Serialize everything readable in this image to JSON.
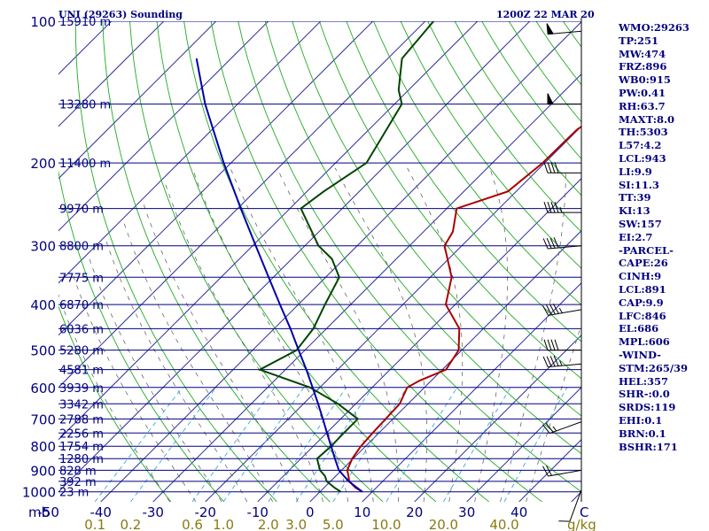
{
  "header": {
    "station": "UNI (29263) Sounding",
    "time": "1200Z 22 MAR 20"
  },
  "units": {
    "pressure": "mb",
    "temperature": "C",
    "mixing_ratio": "g/kg"
  },
  "chart_data": {
    "type": "line",
    "title": "UNI (29263) Sounding",
    "subtitle": "1200Z 22 MAR 20",
    "y_scale": "log",
    "ylim": [
      1050,
      100
    ],
    "xlim": [
      -50,
      50
    ],
    "pressure_ticks": [
      "100",
      "200",
      "300",
      "400",
      "500",
      "600",
      "700",
      "800",
      "900",
      "1000"
    ],
    "pressure_values": [
      100,
      200,
      300,
      400,
      500,
      600,
      700,
      800,
      900,
      1000
    ],
    "temp_ticks": [
      "-50",
      "-40",
      "-30",
      "-20",
      "-10",
      "0",
      "10",
      "20",
      "30",
      "40"
    ],
    "temp_values": [
      -50,
      -40,
      -30,
      -20,
      -10,
      0,
      10,
      20,
      30,
      40
    ],
    "mixing_ticks": [
      "0.1",
      "0.2",
      "0.6",
      "1.0",
      "2.0",
      "3.0",
      "5.0",
      "10.0",
      "20.0",
      "40.0"
    ],
    "mixing_values": [
      0.1,
      0.2,
      0.6,
      1.0,
      2.0,
      3.0,
      5.0,
      10.0,
      20.0,
      40.0
    ],
    "height_levels": [
      {
        "p": 100,
        "label": "15910 m"
      },
      {
        "p": 150,
        "label": "13280 m"
      },
      {
        "p": 200,
        "label": "11400 m"
      },
      {
        "p": 250,
        "label": "9970 m"
      },
      {
        "p": 300,
        "label": "8800 m"
      },
      {
        "p": 350,
        "label": "7775 m"
      },
      {
        "p": 400,
        "label": "6870 m"
      },
      {
        "p": 450,
        "label": "6036 m"
      },
      {
        "p": 500,
        "label": "5280 m"
      },
      {
        "p": 550,
        "label": "4581 m"
      },
      {
        "p": 600,
        "label": "3939 m"
      },
      {
        "p": 650,
        "label": "3342 m"
      },
      {
        "p": 700,
        "label": "2788 m"
      },
      {
        "p": 750,
        "label": "2256 m"
      },
      {
        "p": 800,
        "label": "1754 m"
      },
      {
        "p": 850,
        "label": "1280 m"
      },
      {
        "p": 900,
        "label": "828 m"
      },
      {
        "p": 950,
        "label": "392 m"
      },
      {
        "p": 1000,
        "label": "23 m"
      }
    ],
    "series": [
      {
        "name": "Temperature",
        "color": "#aa0000",
        "points": [
          [
            1000,
            8.1
          ],
          [
            980,
            6.0
          ],
          [
            950,
            3.6
          ],
          [
            925,
            2.4
          ],
          [
            900,
            1.1
          ],
          [
            850,
            -0.2
          ],
          [
            800,
            -0.9
          ],
          [
            750,
            -1.2
          ],
          [
            700,
            -1.4
          ],
          [
            650,
            -1.6
          ],
          [
            600,
            -3.3
          ],
          [
            580,
            -2.2
          ],
          [
            550,
            0.7
          ],
          [
            500,
            -0.6
          ],
          [
            450,
            -4.6
          ],
          [
            400,
            -11.8
          ],
          [
            350,
            -15.9
          ],
          [
            300,
            -23.3
          ],
          [
            280,
            -24.4
          ],
          [
            250,
            -28.1
          ],
          [
            230,
            -21.6
          ],
          [
            200,
            -20.4
          ],
          [
            170,
            -20.2
          ],
          [
            150,
            -17.9
          ],
          [
            140,
            -17.7
          ],
          [
            120,
            -18.6
          ],
          [
            100,
            -17.5
          ]
        ]
      },
      {
        "name": "Dewpoint",
        "color": "#004400",
        "points": [
          [
            1000,
            4.0
          ],
          [
            980,
            2.0
          ],
          [
            950,
            -0.7
          ],
          [
            925,
            -2.1
          ],
          [
            900,
            -4.1
          ],
          [
            850,
            -6.9
          ],
          [
            800,
            -6.6
          ],
          [
            750,
            -6.7
          ],
          [
            700,
            -6.7
          ],
          [
            650,
            -13.4
          ],
          [
            600,
            -21.9
          ],
          [
            550,
            -34.9
          ],
          [
            500,
            -31.6
          ],
          [
            450,
            -32.5
          ],
          [
            400,
            -34.9
          ],
          [
            350,
            -37.4
          ],
          [
            320,
            -42.3
          ],
          [
            300,
            -47.4
          ],
          [
            250,
            -57.9
          ],
          [
            230,
            -56.8
          ],
          [
            200,
            -54.1
          ],
          [
            150,
            -58.6
          ],
          [
            140,
            -61.9
          ],
          [
            120,
            -67.3
          ],
          [
            100,
            -68.4
          ]
        ]
      },
      {
        "name": "Parcel",
        "color": "#0000aa",
        "points": [
          [
            1000,
            8.1
          ],
          [
            950,
            3.5
          ],
          [
            900,
            -0.5
          ],
          [
            850,
            -3.5
          ],
          [
            800,
            -6.6
          ],
          [
            750,
            -9.9
          ],
          [
            700,
            -13.4
          ],
          [
            650,
            -17.2
          ],
          [
            600,
            -21.4
          ],
          [
            550,
            -26.0
          ],
          [
            500,
            -31.2
          ],
          [
            450,
            -36.9
          ],
          [
            400,
            -43.5
          ],
          [
            350,
            -50.9
          ],
          [
            300,
            -59.4
          ],
          [
            250,
            -69.4
          ],
          [
            200,
            -81.4
          ],
          [
            150,
            -96.2
          ],
          [
            120,
            -106.6
          ]
        ]
      }
    ],
    "wind_barbs": [
      {
        "p": 105,
        "dir": 265,
        "speed_kt": 50
      },
      {
        "p": 150,
        "dir": 270,
        "speed_kt": 50
      },
      {
        "p": 210,
        "dir": 270,
        "speed_kt": 40
      },
      {
        "p": 255,
        "dir": 270,
        "speed_kt": 45
      },
      {
        "p": 300,
        "dir": 265,
        "speed_kt": 40
      },
      {
        "p": 410,
        "dir": 260,
        "speed_kt": 45
      },
      {
        "p": 500,
        "dir": 270,
        "speed_kt": 40
      },
      {
        "p": 535,
        "dir": 265,
        "speed_kt": 45
      },
      {
        "p": 710,
        "dir": 250,
        "speed_kt": 25
      },
      {
        "p": 900,
        "dir": 260,
        "speed_kt": 20
      },
      {
        "p": 990,
        "dir": 200,
        "speed_kt": 10
      }
    ]
  },
  "stats": [
    "WMO:29263",
    "TP:251",
    "MW:474",
    "FRZ:896",
    "WB0:915",
    "PW:0.41",
    "RH:63.7",
    "MAXT:8.0",
    "TH:5303",
    "L57:4.2",
    "LCL:943",
    "LI:9.9",
    "SI:11.3",
    "TT:39",
    "KI:13",
    "SW:157",
    "EI:2.7",
    "-PARCEL-",
    "CAPE:26",
    "CINH:9",
    "LCL:891",
    "CAP:9.9",
    "LFC:846",
    "EL:686",
    "MPL:606",
    "-WIND-",
    "STM:265/39",
    "HEL:357",
    "SHR-:0.0",
    "SRDS:119",
    "EHI:0.1",
    "BRN:0.1",
    "BSHR:171"
  ]
}
